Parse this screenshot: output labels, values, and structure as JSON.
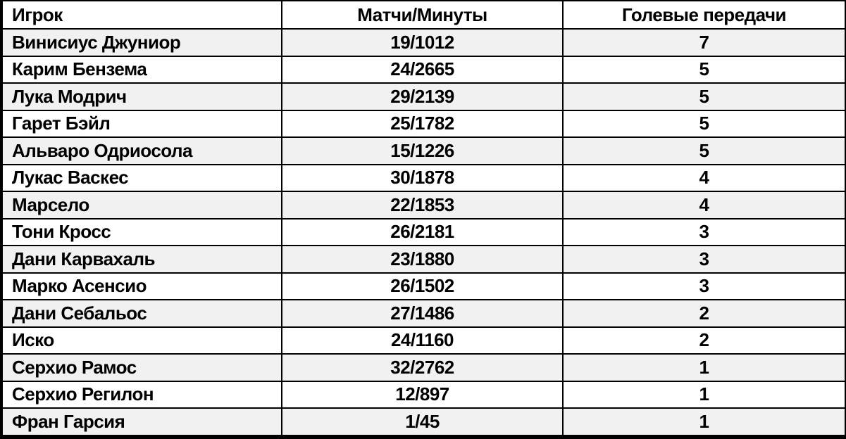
{
  "chart_data": {
    "type": "table",
    "title": "",
    "columns": [
      "Игрок",
      "Матчи/Минуты",
      "Голевые передачи"
    ],
    "column_keys": [
      "player",
      "matches_minutes",
      "assists"
    ],
    "rows": [
      [
        "Винисиус Джуниор",
        "19/1012",
        "7"
      ],
      [
        "Карим Бензема",
        "24/2665",
        "5"
      ],
      [
        "Лука Модрич",
        "29/2139",
        "5"
      ],
      [
        "Гарет Бэйл",
        "25/1782",
        "5"
      ],
      [
        "Альваро Одриосола",
        "15/1226",
        "5"
      ],
      [
        "Лукас Васкес",
        "30/1878",
        "4"
      ],
      [
        "Марсело",
        "22/1853",
        "4"
      ],
      [
        "Тони Кросс",
        "26/2181",
        "3"
      ],
      [
        "Дани Карвахаль",
        "23/1880",
        "3"
      ],
      [
        "Марко Асенсио",
        "26/1502",
        "3"
      ],
      [
        "Дани Себальос",
        "27/1486",
        "2"
      ],
      [
        "Иско",
        "24/1160",
        "2"
      ],
      [
        "Серхио Рамос",
        "32/2762",
        "1"
      ],
      [
        "Серхио Регилон",
        "12/897",
        "1"
      ],
      [
        "Фран Гарсия",
        "1/45",
        "1"
      ]
    ],
    "layout": {
      "grid": true,
      "striped_rows": true
    }
  },
  "colors": {
    "border": "#000000",
    "row_stripe": "#f1f1f1",
    "row_plain": "#ffffff",
    "text": "#000000",
    "header_background": "#ffffff"
  }
}
